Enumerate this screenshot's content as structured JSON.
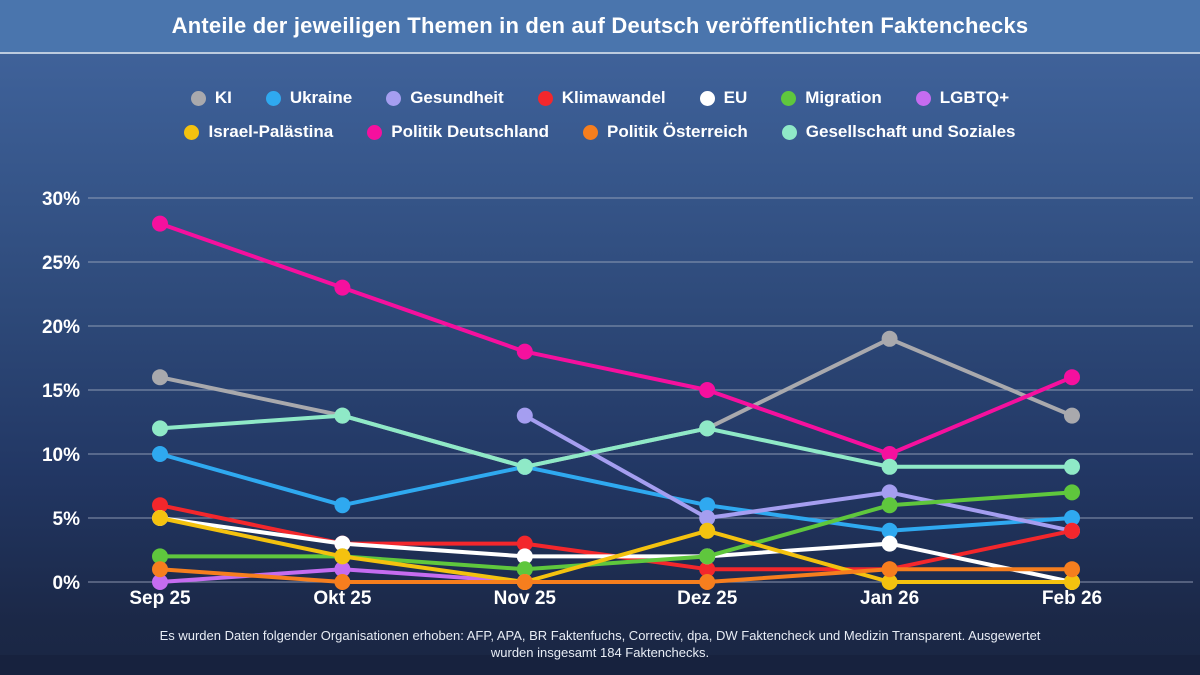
{
  "header": {
    "title": "Anteile der jeweiligen Themen in den auf Deutsch veröffentlichten Faktenchecks"
  },
  "footer": {
    "line1": "Es wurden Daten folgender Organisationen erhoben: AFP, APA, BR Faktenfuchs, Correctiv, dpa, DW Faktencheck und Medizin Transparent. Ausgewertet",
    "line2": "wurden insgesamt 184 Faktenchecks."
  },
  "chart_data": {
    "type": "line",
    "title": "Anteile der jeweiligen Themen in den auf Deutsch veröffentlichten Faktenchecks",
    "categories": [
      "Sep 25",
      "Okt 25",
      "Nov 25",
      "Dez 25",
      "Jan 26",
      "Feb 26"
    ],
    "ylabel": "",
    "xlabel": "",
    "ylim": [
      0,
      30
    ],
    "y_tick_step": 5,
    "y_tick_labels": [
      "0%",
      "5%",
      "10%",
      "15%",
      "20%",
      "25%",
      "30%"
    ],
    "grid": true,
    "legend_position": "top",
    "legend_rows": [
      [
        0,
        1,
        2,
        3,
        4,
        5,
        6
      ],
      [
        7,
        8,
        9,
        10
      ]
    ],
    "colors": {
      "grid": "#a3aec2",
      "axis_text": "#ffffff"
    },
    "series": [
      {
        "name": "KI",
        "color": "#a9a9ad",
        "values": [
          16,
          13,
          9,
          12,
          19,
          13
        ]
      },
      {
        "name": "Ukraine",
        "color": "#2fa9f0",
        "values": [
          10,
          6,
          9,
          6,
          4,
          5
        ]
      },
      {
        "name": "Gesundheit",
        "color": "#a59ef0",
        "values": [
          null,
          null,
          13,
          5,
          7,
          4
        ]
      },
      {
        "name": "Klimawandel",
        "color": "#f3272c",
        "values": [
          6,
          3,
          3,
          1,
          1,
          4
        ]
      },
      {
        "name": "EU",
        "color": "#ffffff",
        "values": [
          5,
          3,
          2,
          2,
          3,
          0
        ]
      },
      {
        "name": "Migration",
        "color": "#5fc73d",
        "values": [
          2,
          2,
          1,
          2,
          6,
          7
        ]
      },
      {
        "name": "LGBTQ+",
        "color": "#c56cf0",
        "values": [
          0,
          1,
          0,
          null,
          null,
          null
        ]
      },
      {
        "name": "Israel-Palästina",
        "color": "#f4c20f",
        "values": [
          5,
          2,
          0,
          4,
          0,
          0
        ]
      },
      {
        "name": "Politik Deutschland",
        "color": "#f5109e",
        "values": [
          28,
          23,
          18,
          15,
          10,
          16
        ]
      },
      {
        "name": "Politik Österreich",
        "color": "#f67e1e",
        "values": [
          1,
          0,
          0,
          0,
          1,
          1
        ]
      },
      {
        "name": "Gesellschaft und Soziales",
        "color": "#8fe9c7",
        "values": [
          12,
          13,
          9,
          12,
          9,
          9
        ]
      }
    ]
  }
}
